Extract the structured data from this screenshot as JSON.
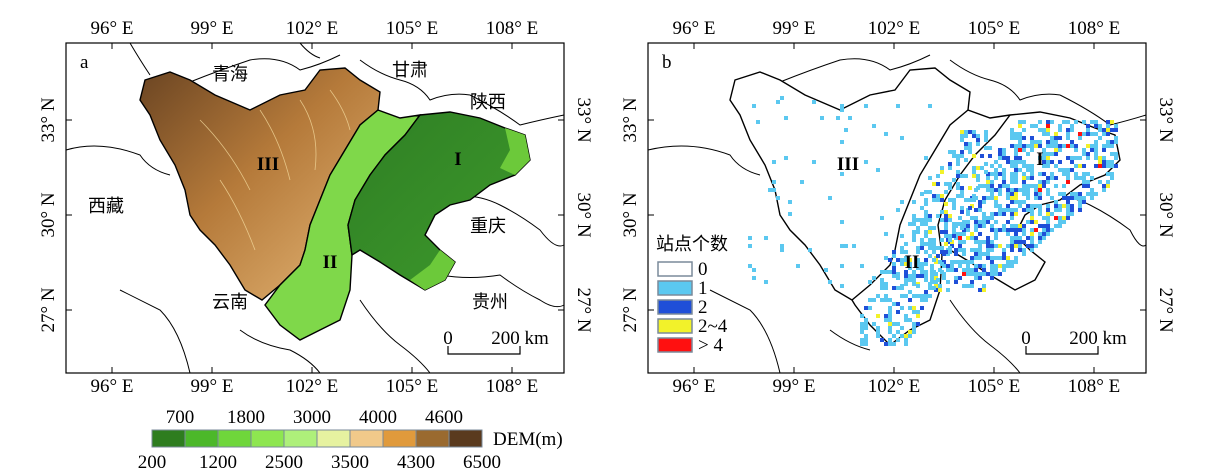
{
  "figure": {
    "panel_a": {
      "letter": "a",
      "lon_labels": [
        "96° E",
        "99° E",
        "102° E",
        "105° E",
        "108° E"
      ],
      "lat_labels": [
        "33° N",
        "30° N",
        "27° N"
      ],
      "provinces": [
        "青海",
        "甘肃",
        "陕西",
        "西藏",
        "重庆",
        "云南",
        "贵州"
      ],
      "regions": [
        "I",
        "II",
        "III"
      ],
      "scale_bar": {
        "start": "0",
        "end": "200 km"
      }
    },
    "panel_b": {
      "letter": "b",
      "lon_labels": [
        "96° E",
        "99° E",
        "102° E",
        "105° E",
        "108° E"
      ],
      "lat_labels": [
        "33° N",
        "30° N",
        "27° N"
      ],
      "regions": [
        "I",
        "II",
        "III"
      ],
      "scale_bar": {
        "start": "0",
        "end": "200 km"
      },
      "legend": {
        "title": "站点个数",
        "items": [
          {
            "label": "0",
            "color": "#ffffff"
          },
          {
            "label": "1",
            "color": "#5bc8f0"
          },
          {
            "label": "2",
            "color": "#1f4fd8"
          },
          {
            "label": "2~4",
            "color": "#f2f22a"
          },
          {
            "label": "> 4",
            "color": "#ff1010"
          }
        ]
      }
    },
    "dem_colorbar": {
      "title": "DEM(m)",
      "upper_labels": [
        "700",
        "1800",
        "3000",
        "4000",
        "4600"
      ],
      "lower_labels": [
        "200",
        "1200",
        "2500",
        "3500",
        "4300",
        "6500"
      ],
      "colors": [
        "#2e7d1f",
        "#4cb82a",
        "#6fd63b",
        "#8ee650",
        "#aef07a",
        "#e6f2a0",
        "#f1c98a",
        "#e09a3c",
        "#9a6a2f",
        "#5a3a1e"
      ]
    }
  }
}
